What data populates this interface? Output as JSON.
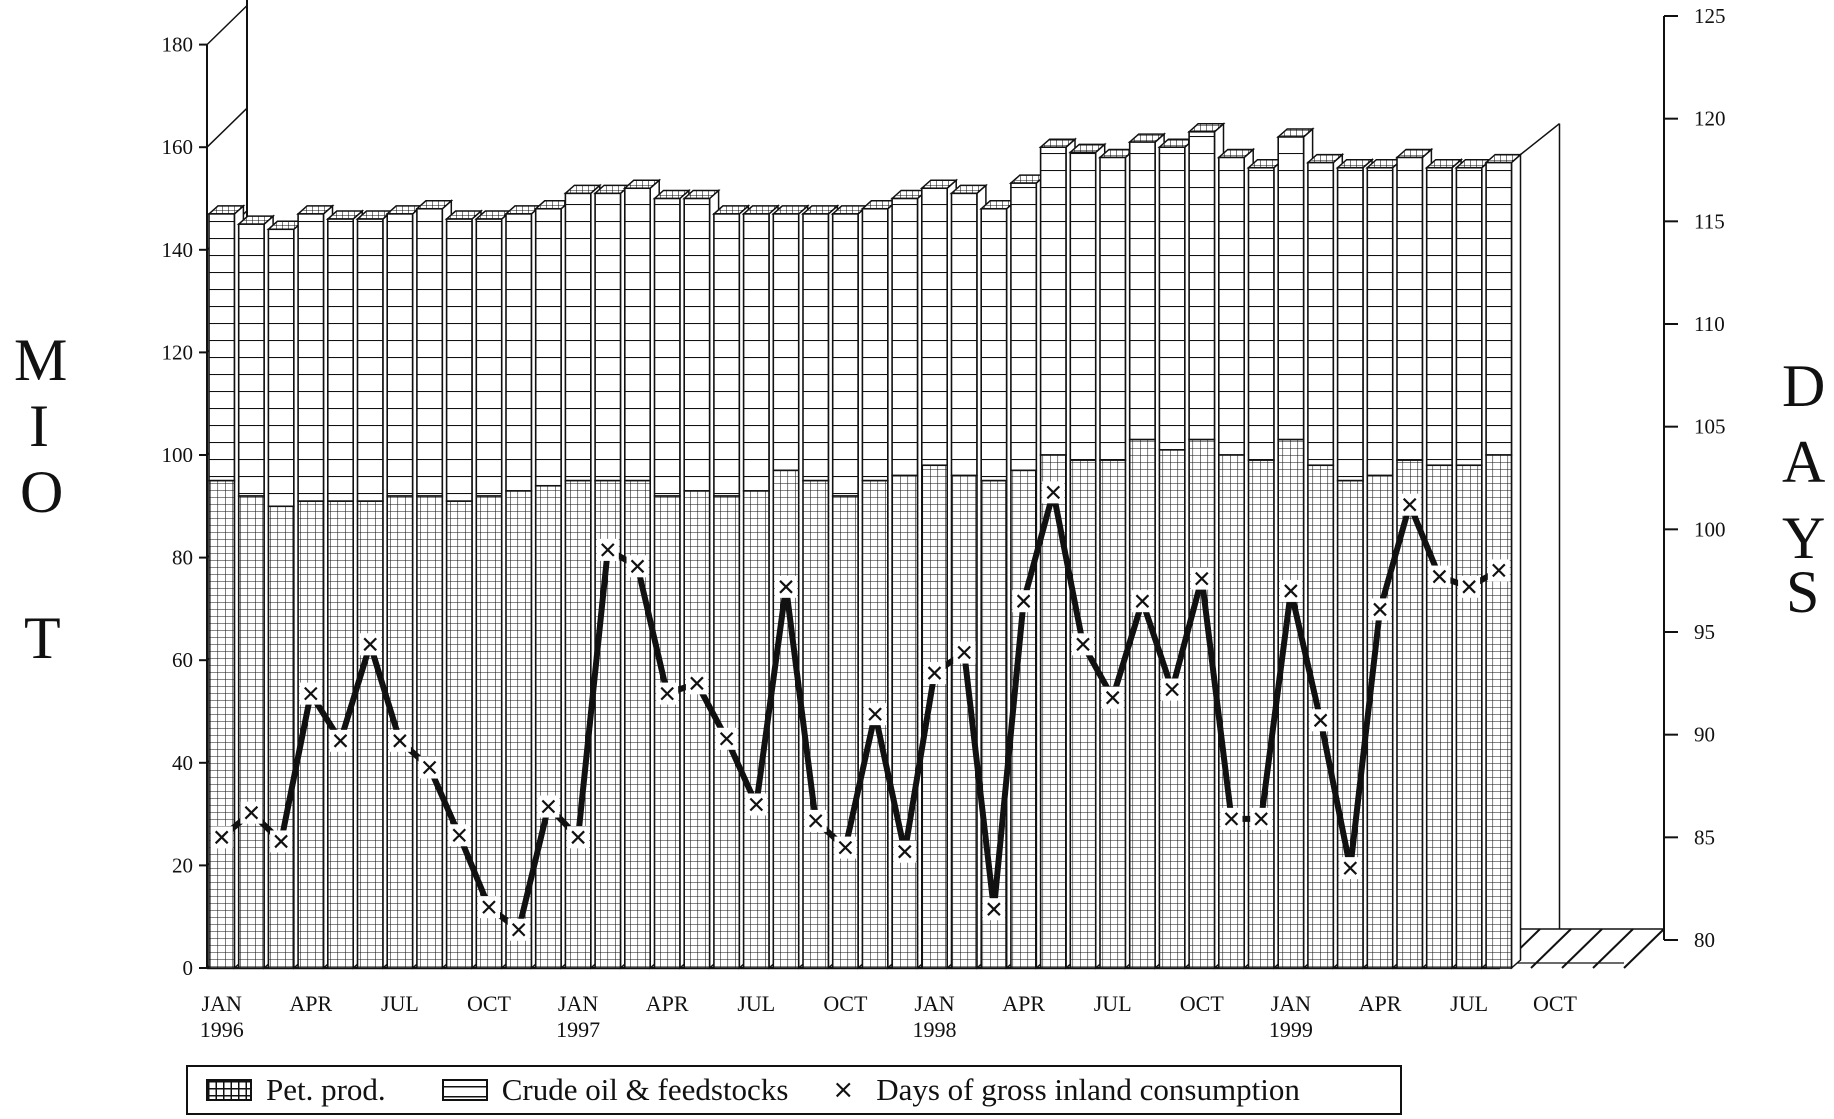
{
  "chart_data": {
    "type": "bar",
    "title": "",
    "x_labels": [
      {
        "month": "JAN",
        "year": "1996"
      },
      {
        "month": "APR",
        "year": ""
      },
      {
        "month": "JUL",
        "year": ""
      },
      {
        "month": "OCT",
        "year": ""
      },
      {
        "month": "JAN",
        "year": "1997"
      },
      {
        "month": "APR",
        "year": ""
      },
      {
        "month": "JUL",
        "year": ""
      },
      {
        "month": "OCT",
        "year": ""
      },
      {
        "month": "JAN",
        "year": "1998"
      },
      {
        "month": "APR",
        "year": ""
      },
      {
        "month": "JUL",
        "year": ""
      },
      {
        "month": "OCT",
        "year": ""
      },
      {
        "month": "JAN",
        "year": "1999"
      },
      {
        "month": "APR",
        "year": ""
      },
      {
        "month": "JUL",
        "year": ""
      },
      {
        "month": "OCT",
        "year": ""
      }
    ],
    "left_axis": {
      "label_letters": [
        "M",
        "I",
        "O",
        "",
        "T"
      ],
      "ylim": [
        0,
        180
      ],
      "ticks": [
        "0",
        "20",
        "40",
        "60",
        "80",
        "100",
        "120",
        "140",
        "160",
        "180"
      ]
    },
    "right_axis": {
      "label_letters": [
        "D",
        "A",
        "Y",
        "S"
      ],
      "ylim": [
        80,
        125
      ],
      "ticks": [
        "80",
        "85",
        "90",
        "95",
        "100",
        "105",
        "110",
        "115",
        "120",
        "125"
      ]
    },
    "series": [
      {
        "name": "Pet. prod.",
        "axis": "left",
        "values": [
          95,
          92,
          90,
          91,
          91,
          91,
          92,
          92,
          91,
          92,
          93,
          94,
          95,
          95,
          95,
          92,
          93,
          92,
          93,
          97,
          95,
          92,
          95,
          96,
          98,
          96,
          95,
          97,
          100,
          99,
          99,
          103,
          101,
          103,
          100,
          99,
          103,
          98,
          95,
          96,
          99,
          98,
          98,
          100
        ]
      },
      {
        "name": "Crude oil & feedstocks",
        "axis": "left",
        "values": [
          52,
          53,
          54,
          56,
          55,
          55,
          55,
          56,
          55,
          54,
          54,
          54,
          56,
          56,
          57,
          58,
          57,
          55,
          54,
          50,
          52,
          55,
          53,
          54,
          54,
          55,
          53,
          56,
          60,
          60,
          59,
          58,
          59,
          60,
          58,
          57,
          59,
          59,
          61,
          60,
          59,
          58,
          58,
          57
        ]
      },
      {
        "name": "Days of gross inland consumption",
        "axis": "right",
        "values": [
          85.0,
          86.2,
          84.8,
          92.0,
          89.7,
          94.4,
          89.7,
          88.4,
          85.1,
          81.6,
          80.5,
          86.5,
          85.0,
          99.0,
          98.2,
          92.0,
          92.5,
          89.8,
          86.6,
          97.2,
          85.8,
          84.5,
          91.0,
          84.3,
          93.0,
          94.0,
          81.5,
          96.5,
          101.8,
          94.4,
          91.8,
          96.5,
          92.2,
          97.6,
          85.9,
          85.9,
          97.0,
          90.7,
          83.5,
          96.1,
          101.2,
          97.7,
          97.2,
          98.0
        ]
      }
    ],
    "grid": false,
    "legend_position": "bottom",
    "legend": [
      {
        "label": "Pet. prod.",
        "swatch": "grid"
      },
      {
        "label": "Crude oil & feedstocks",
        "swatch": "hatch"
      },
      {
        "label": "Days of gross inland consumption",
        "swatch": "x-marker"
      }
    ]
  },
  "legend_marker_glyph": "×",
  "colors": {
    "ink": "#111111",
    "background": "#ffffff"
  }
}
